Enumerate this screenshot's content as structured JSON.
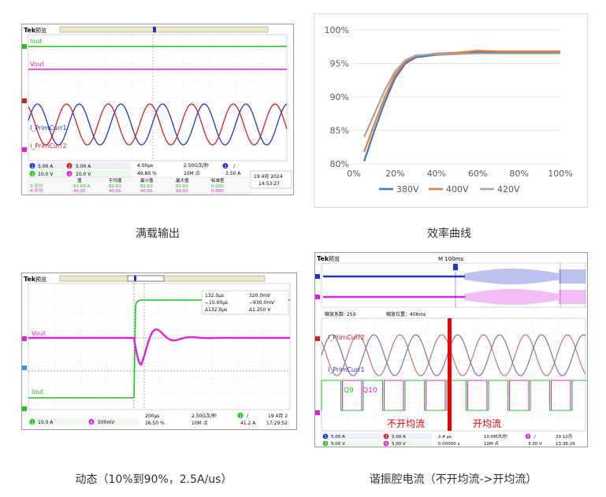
{
  "colors": {
    "green": "#22c322",
    "magenta": "#dd22dd",
    "blue": "#2233cc",
    "red": "#cc2222",
    "grid": "#c8c8c8",
    "series_380": "#4472c4",
    "series_400": "#ed7d31",
    "series_420": "#a5a5a5",
    "cut_bar": "#ee0000"
  },
  "panels": {
    "full_load": {
      "brand": "Tek",
      "mode": "预览",
      "ch_iout": "Iout",
      "ch_vout": "Vout",
      "ch_prim1": "I_PrimCurr1",
      "ch_prim2": "I_PrimCurr2",
      "ch_markers": [
        "1",
        "2",
        "3",
        "4"
      ],
      "settings_row1": [
        "1",
        "5.00 A",
        "Ⓑ",
        "2",
        "5.00 A",
        "Ⓑ"
      ],
      "settings_row2": [
        "3",
        "10.0 V",
        "Ⓑ",
        "4",
        "10.0 V",
        "Ⓑ"
      ],
      "timebase": [
        "4.00µs",
        "2.50G次/秒",
        "10M 点"
      ],
      "trigger": [
        "1",
        "∕",
        "3.50 A"
      ],
      "trigger_pos": "49.80 %",
      "date": [
        "19 4月 2024",
        "14:53:27"
      ],
      "meas_header": [
        "值",
        "平均值",
        "最小值",
        "最大值",
        "标准差"
      ],
      "meas_rows": [
        {
          "label": "3 平均",
          "vals": [
            "82.63",
            "82.63",
            "82.63",
            "82.63",
            "0.000"
          ]
        },
        {
          "label": "4 平均",
          "vals": [
            "40.01",
            "40.01",
            "40.01",
            "40.01",
            "0.000"
          ]
        }
      ],
      "meas_row_units": [
        "82.63 A",
        "40.01"
      ],
      "caption": "满载输出"
    },
    "efficiency": {
      "caption": "效率曲线"
    },
    "dynamic": {
      "brand": "Tek",
      "mode": "预览",
      "ch_vout": "Vout",
      "ch_iout": "Iout",
      "cursor_a": "132.0µs",
      "cursor_b": "−10.00µs",
      "cursor_delta": "Δ132.0µs",
      "cursor_v1": "320.0mV",
      "cursor_v2": "−930.0mV",
      "cursor_dv": "Δ1.250 V",
      "settings": [
        "1",
        "10.0 A",
        "Ⓑ",
        "4",
        "500mV",
        "Ⓑ"
      ],
      "timebase": [
        "200µs",
        "2.50G次/秒",
        "10M 点"
      ],
      "trigger": [
        "1",
        "∕",
        "41.2 A"
      ],
      "trigger_pos": "16.50 %",
      "date": [
        "19 4月 2",
        "17:29:52"
      ],
      "caption": "动态（10%到90%，2.5A/us）"
    },
    "resonant": {
      "brand": "Tek",
      "mode": "预览",
      "top_time": "M 100ms",
      "zoom_factor": "缩放系数: 25X",
      "zoom_pos": "缩放位置：406ms",
      "ch_prim2": "I_PrimCurr2",
      "ch_prim1": "I_PrimCurr1",
      "q9": "Q9",
      "q10": "Q10",
      "label_off": "不开均流",
      "label_on": "开均流",
      "settings_row1": [
        "1",
        "5.00 A",
        "Ⓑ",
        "2",
        "5.00 A",
        "Ⓑ"
      ],
      "settings_row2": [
        "3",
        "5.00 V",
        "Ⓑ",
        "4",
        "5.00 V",
        "Ⓑ"
      ],
      "timebase": [
        "2.4 µs",
        "10.0M次/秒",
        "10M 点"
      ],
      "trigger_pos": "0.00000 s",
      "trigger": [
        "4",
        "∕",
        "3.30 V"
      ],
      "date": [
        "29 12月",
        "13:36:29"
      ],
      "caption": "谐振腔电流（不开均流->开均流）"
    }
  },
  "chart_data": {
    "type": "line",
    "x": [
      5,
      10,
      15,
      20,
      25,
      30,
      40,
      50,
      60,
      70,
      80,
      100
    ],
    "series": [
      {
        "name": "380V",
        "values": [
          80.4,
          85.0,
          89.2,
          92.8,
          95.0,
          95.9,
          96.3,
          96.4,
          96.7,
          96.7,
          96.7,
          96.6
        ]
      },
      {
        "name": "400V",
        "values": [
          81.8,
          86.0,
          90.0,
          93.3,
          95.3,
          96.1,
          96.5,
          96.6,
          96.9,
          96.8,
          96.8,
          96.8
        ]
      },
      {
        "name": "420V",
        "values": [
          84.0,
          87.5,
          91.0,
          93.8,
          95.5,
          96.2,
          96.4,
          96.4,
          96.5,
          96.5,
          96.5,
          96.5
        ]
      }
    ],
    "xticks": [
      "0%",
      "20%",
      "40%",
      "60%",
      "80%",
      "100%"
    ],
    "yticks": [
      "80%",
      "85%",
      "90%",
      "95%",
      "100%"
    ],
    "xlim": [
      0,
      100
    ],
    "ylim": [
      80,
      100
    ],
    "xlabel": "",
    "ylabel": "",
    "grid": true,
    "legend_position": "bottom"
  }
}
